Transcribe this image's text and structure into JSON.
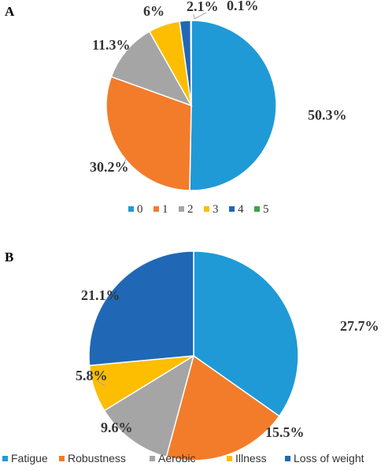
{
  "chart_data": [
    {
      "type": "pie",
      "panel_label": "A",
      "categories": [
        "0",
        "1",
        "2",
        "3",
        "4",
        "5"
      ],
      "values": [
        50.3,
        30.2,
        11.3,
        6.0,
        2.1,
        0.1
      ],
      "labels": [
        "50.3%",
        "30.2%",
        "11.3%",
        "6%",
        "2.1%",
        "0.1%"
      ],
      "colors": [
        "#1f9ad6",
        "#f37c2b",
        "#a5a5a5",
        "#fdbd00",
        "#2068b6",
        "#3aa54a"
      ],
      "legend_placement": "bottom"
    },
    {
      "type": "pie",
      "panel_label": "B",
      "categories": [
        "Fatigue",
        "Robustness",
        "Aerobic",
        "Illness",
        "Loss of weight"
      ],
      "values": [
        27.7,
        15.5,
        9.6,
        5.8,
        21.1
      ],
      "labels": [
        "27.7%",
        "15.5%",
        "9.6%",
        "5.8%",
        "21.1%"
      ],
      "colors": [
        "#1f9ad6",
        "#f37c2b",
        "#a5a5a5",
        "#fdbd00",
        "#2068b6"
      ],
      "legend_placement": "bottom"
    }
  ]
}
